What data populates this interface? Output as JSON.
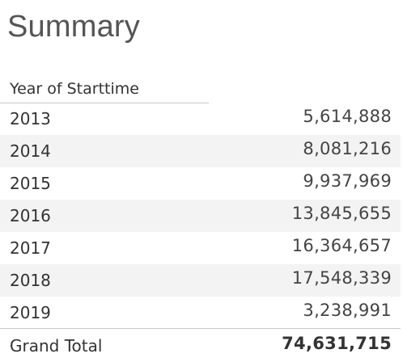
{
  "title": "Summary",
  "table": {
    "column_header": "Year of Starttime",
    "rows": [
      {
        "year": "2013",
        "value": "5,614,888"
      },
      {
        "year": "2014",
        "value": "8,081,216"
      },
      {
        "year": "2015",
        "value": "9,937,969"
      },
      {
        "year": "2016",
        "value": "13,845,655"
      },
      {
        "year": "2017",
        "value": "16,364,657"
      },
      {
        "year": "2018",
        "value": "17,548,339"
      },
      {
        "year": "2019",
        "value": "3,238,991"
      }
    ],
    "total": {
      "label": "Grand Total",
      "value": "74,631,715"
    }
  }
}
